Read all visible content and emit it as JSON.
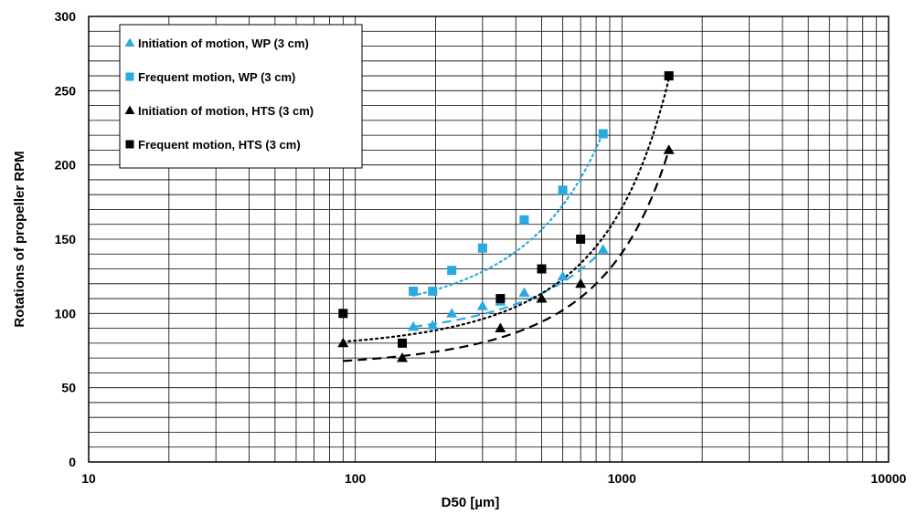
{
  "chart_data": {
    "type": "scatter",
    "xscale": "log",
    "xlabel": "D50 [µm]",
    "ylabel": "Rotations of propeller RPM",
    "xlim": [
      10,
      10000
    ],
    "ylim": [
      0,
      300
    ],
    "xticks": [
      10,
      100,
      1000,
      10000
    ],
    "xtick_labels": [
      "10",
      "100",
      "1000",
      "10000"
    ],
    "yticks": [
      0,
      50,
      100,
      150,
      200,
      250,
      300
    ],
    "ytick_labels": [
      "0",
      "50",
      "100",
      "150",
      "200",
      "250",
      "300"
    ],
    "grid": true,
    "legend_position": "top-left",
    "series": [
      {
        "name": "Initiation of motion, WP (3 cm)",
        "marker": "triangle",
        "color": "#29abe2",
        "x": [
          165,
          195,
          230,
          300,
          350,
          430,
          600,
          850
        ],
        "y": [
          91,
          92,
          100,
          105,
          108,
          114,
          125,
          143
        ],
        "trend": {
          "style": "dashed",
          "color": "#29abe2",
          "x": [
            165,
            850
          ],
          "y": [
            91,
            143
          ]
        }
      },
      {
        "name": "Frequent motion, WP (3 cm)",
        "marker": "square",
        "color": "#29abe2",
        "x": [
          165,
          195,
          230,
          300,
          430,
          600,
          850
        ],
        "y": [
          115,
          115,
          129,
          144,
          163,
          183,
          221
        ],
        "trend": {
          "style": "dotted",
          "color": "#29abe2",
          "x": [
            165,
            850
          ],
          "y": [
            112,
            222
          ]
        }
      },
      {
        "name": "Initiation of motion, HTS (3 cm)",
        "marker": "triangle",
        "color": "#000000",
        "x": [
          90,
          150,
          350,
          500,
          700,
          1500
        ],
        "y": [
          80,
          70,
          90,
          110,
          120,
          210
        ],
        "trend": {
          "style": "dashed",
          "color": "#000000",
          "x": [
            90,
            1500
          ],
          "y": [
            68,
            210
          ]
        }
      },
      {
        "name": "Frequent motion, HTS (3 cm)",
        "marker": "square",
        "color": "#000000",
        "x": [
          90,
          150,
          350,
          500,
          700,
          1500
        ],
        "y": [
          100,
          80,
          110,
          130,
          150,
          260
        ],
        "trend": {
          "style": "dotted",
          "color": "#000000",
          "x": [
            90,
            1500
          ],
          "y": [
            81,
            258
          ]
        }
      }
    ]
  }
}
